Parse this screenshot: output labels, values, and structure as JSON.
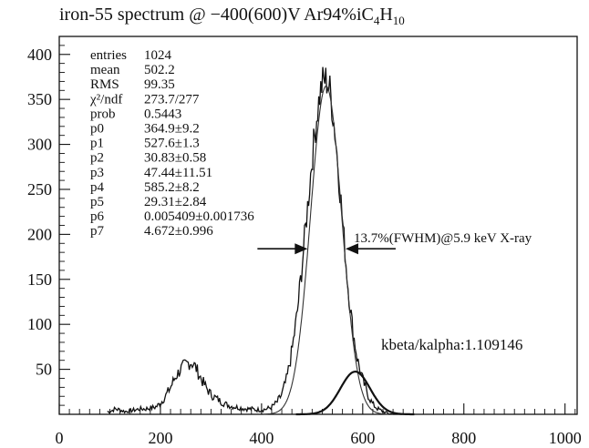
{
  "chart_data": {
    "type": "histogram",
    "title_main": "iron-55 spectrum @ −400(600)V Ar94%iC",
    "title_sub1": "4",
    "title_mid": "H",
    "title_sub2": "10",
    "xlabel": "",
    "ylabel": "",
    "xlim": [
      0,
      1024
    ],
    "ylim": [
      0,
      420
    ],
    "x_ticks": [
      "0",
      "200",
      "400",
      "600",
      "800",
      "1000"
    ],
    "y_ticks": [
      "50",
      "100",
      "150",
      "200",
      "250",
      "300",
      "350",
      "400"
    ],
    "stats": [
      {
        "name": "entries",
        "value": "1024"
      },
      {
        "name": "mean",
        "value": "502.2"
      },
      {
        "name": "RMS",
        "value": "99.35"
      },
      {
        "name": "χ²/ndf",
        "value": "273.7/277"
      },
      {
        "name": "prob",
        "value": "0.5443"
      },
      {
        "name": "p0",
        "value": "364.9±9.2"
      },
      {
        "name": "p1",
        "value": "527.6±1.3"
      },
      {
        "name": "p2",
        "value": "30.83±0.58"
      },
      {
        "name": "p3",
        "value": "47.44±11.51"
      },
      {
        "name": "p4",
        "value": "585.2±8.2"
      },
      {
        "name": "p5",
        "value": "29.31±2.84"
      },
      {
        "name": "p6",
        "value": "0.005409±0.001736"
      },
      {
        "name": "p7",
        "value": "4.672±0.996"
      }
    ],
    "fwhm_label": "13.7%(FWHM)@5.9 keV X-ray",
    "fwhm_marker_y": 184,
    "fwhm_left_x": 491,
    "fwhm_right_x": 566,
    "kbeta_label": "kbeta/kalpha:1.109146",
    "series": [
      {
        "role": "histogram",
        "color": "#111111",
        "x": [
          0,
          100,
          110,
          120,
          130,
          140,
          150,
          160,
          170,
          180,
          190,
          200,
          210,
          220,
          230,
          240,
          250,
          255,
          260,
          265,
          270,
          275,
          280,
          290,
          300,
          310,
          320,
          330,
          340,
          350,
          360,
          370,
          380,
          390,
          400,
          410,
          420,
          430,
          440,
          450,
          460,
          470,
          480,
          490,
          500,
          505,
          510,
          515,
          520,
          525,
          530,
          535,
          540,
          545,
          550,
          560,
          570,
          580,
          590,
          600,
          610,
          620,
          630,
          640,
          650,
          660,
          670,
          1024
        ],
        "y": [
          0,
          3,
          6,
          5,
          3,
          4,
          5,
          6,
          6,
          7,
          8,
          12,
          20,
          30,
          42,
          50,
          55,
          57,
          58,
          56,
          52,
          46,
          40,
          30,
          22,
          18,
          14,
          11,
          9,
          8,
          7,
          6,
          6,
          5,
          5,
          6,
          8,
          13,
          22,
          40,
          70,
          110,
          165,
          225,
          285,
          310,
          335,
          355,
          368,
          372,
          370,
          360,
          340,
          315,
          285,
          215,
          148,
          95,
          60,
          38,
          22,
          11,
          6,
          3,
          1,
          0,
          0,
          0
        ]
      },
      {
        "role": "kalpha-fit",
        "color": "#333333",
        "mu": 527.6,
        "sigma": 30.83,
        "amp": 364.9
      },
      {
        "role": "kbeta-fit",
        "color": "#111111",
        "mu": 585.2,
        "sigma": 29.31,
        "amp": 47.44
      }
    ]
  }
}
